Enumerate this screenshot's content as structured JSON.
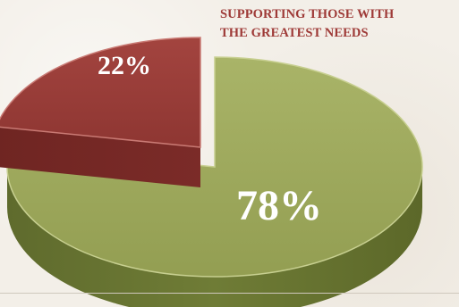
{
  "chart_data": {
    "type": "pie",
    "title": "",
    "slices": [
      {
        "label": "78%",
        "value": 78,
        "color": "#9aa55a",
        "exploded": false
      },
      {
        "label": "22%",
        "value": 22,
        "color": "#9a3d38",
        "exploded": true
      }
    ]
  },
  "callout": {
    "line1": "SUPPORTING THOSE WITH",
    "line2": "THE GREATEST NEEDS",
    "color": "#9e3a37"
  }
}
